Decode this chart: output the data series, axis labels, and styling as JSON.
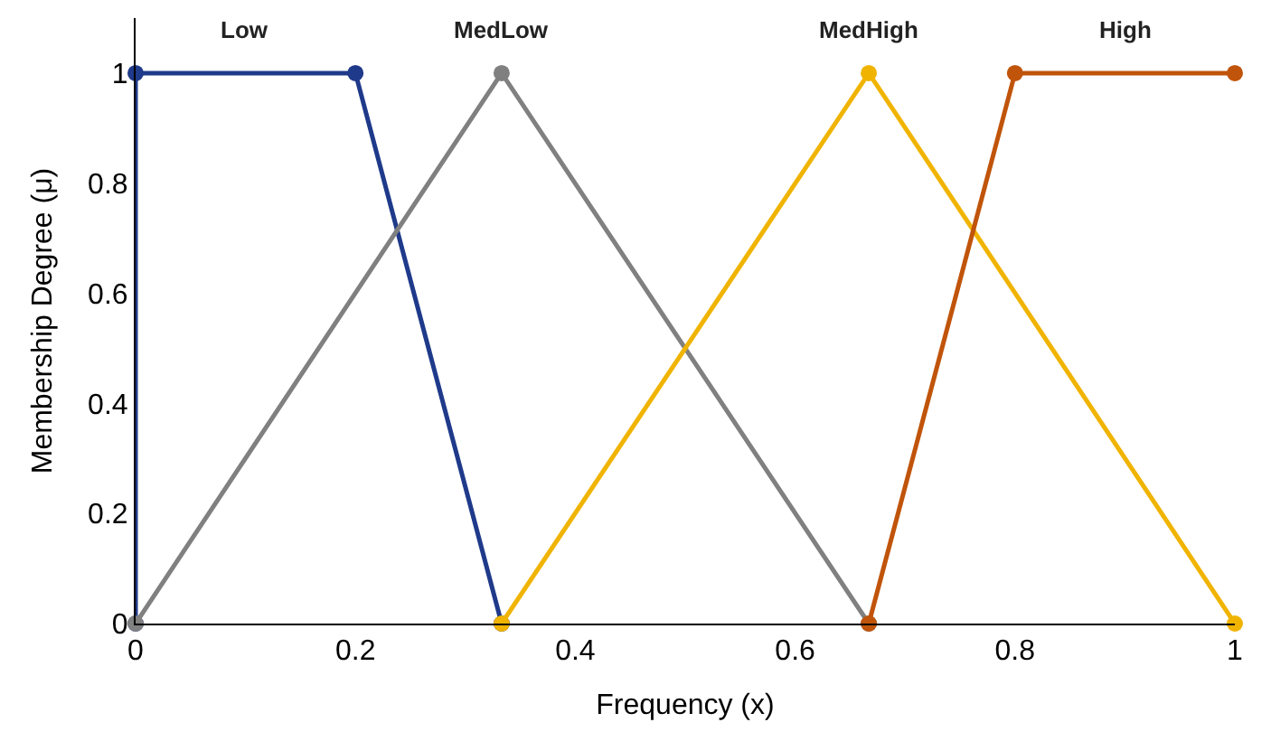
{
  "chart_data": {
    "type": "line",
    "xlabel": "Frequency (x)",
    "ylabel": "Membership Degree (μ)",
    "series": [
      {
        "name": "Low",
        "color": "#1f3a8a",
        "x": [
          0,
          0,
          0.2,
          0.333
        ],
        "values": [
          0,
          1,
          1,
          0
        ]
      },
      {
        "name": "MedLow",
        "color": "#808080",
        "x": [
          0,
          0.333,
          0.667
        ],
        "values": [
          0,
          1,
          0
        ]
      },
      {
        "name": "MedHigh",
        "color": "#f0b400",
        "x": [
          0.333,
          0.667,
          1
        ],
        "values": [
          0,
          1,
          0
        ]
      },
      {
        "name": "High",
        "color": "#c0540a",
        "x": [
          0.667,
          0.8,
          1
        ],
        "values": [
          0,
          1,
          1
        ]
      }
    ],
    "xlim": [
      0,
      1
    ],
    "xticks": [
      0,
      0.2,
      0.4,
      0.6,
      0.8,
      1
    ],
    "ylim": [
      0,
      1.1
    ],
    "yticks": [
      0,
      0.2,
      0.4,
      0.6,
      0.8,
      1
    ],
    "grid": false,
    "legend": false,
    "marker": "circle",
    "line_style": "solid"
  }
}
